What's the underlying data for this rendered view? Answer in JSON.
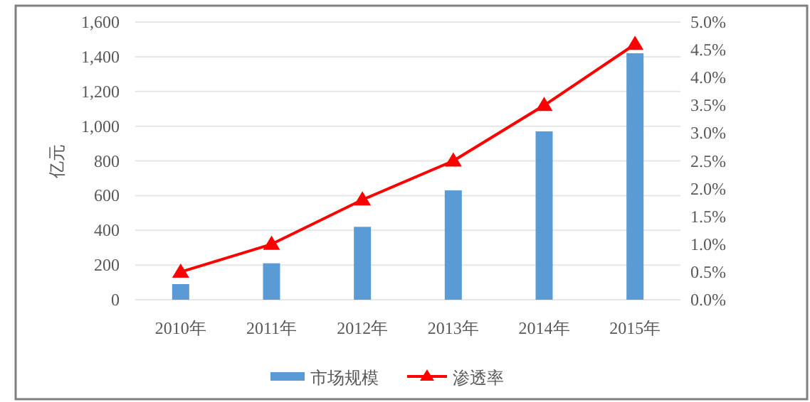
{
  "chart_data": {
    "type": "bar",
    "ylabel": "亿元",
    "categories": [
      "2010年",
      "2011年",
      "2012年",
      "2013年",
      "2014年",
      "2015年"
    ],
    "series": [
      {
        "name": "市场规模",
        "color": "#5b9bd5",
        "values": [
          90,
          210,
          420,
          630,
          970,
          1420
        ]
      },
      {
        "name": "渗透率",
        "type": "line",
        "axis": "y2",
        "color": "#ff0000",
        "marker": "triangle",
        "values": [
          0.5,
          1.0,
          1.8,
          2.5,
          3.5,
          4.6
        ]
      }
    ],
    "ylim": [
      0,
      1600
    ],
    "yticks": [
      0,
      200,
      400,
      600,
      800,
      {
        "value": 1000,
        "label": "1,000"
      },
      {
        "value": 1200,
        "label": "1,200"
      },
      {
        "value": 1400,
        "label": "1,400"
      },
      {
        "value": 1600,
        "label": "1,600"
      }
    ],
    "y2lim": [
      0,
      5
    ],
    "y2ticks": [
      {
        "value": 0,
        "label": "0.0%"
      },
      {
        "value": 0.5,
        "label": "0.5%"
      },
      {
        "value": 1,
        "label": "1.0%"
      },
      {
        "value": 1.5,
        "label": "1.5%"
      },
      {
        "value": 2,
        "label": "2.0%"
      },
      {
        "value": 2.5,
        "label": "2.5%"
      },
      {
        "value": 3,
        "label": "3.0%"
      },
      {
        "value": 3.5,
        "label": "3.5%"
      },
      {
        "value": 4,
        "label": "4.0%"
      },
      {
        "value": 4.5,
        "label": "4.5%"
      },
      {
        "value": 5,
        "label": "5.0%"
      }
    ],
    "grid": "y",
    "legend": "bottom"
  }
}
